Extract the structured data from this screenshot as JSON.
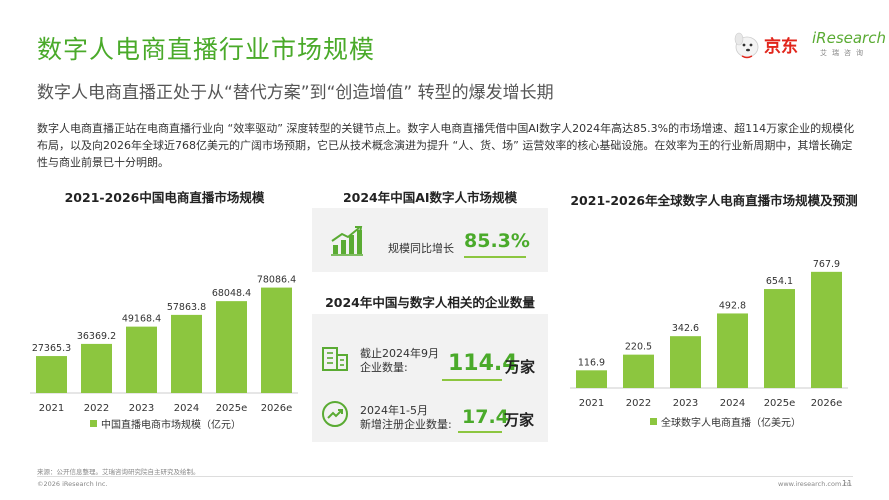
{
  "header": {
    "title": "数字人电商直播行业市场规模",
    "subtitle": "数字人电商直播正处于从“替代方案”到“创造增值” 转型的爆发增长期",
    "paragraph": "数字人电商直播正站在电商直播行业向 “效率驱动” 深度转型的关键节点上。数字人电商直播凭借中国AI数字人2024年高达85.3%的市场增速、超114万家企业的规模化布局，以及向2026年全球近768亿美元的广阔市场预期，它已从技术概念演进为提升 “人、货、场” 运营效率的核心基础设施。在效率为王的行业新周期中，其增长确定性与商业前景已十分明朗。"
  },
  "logo": {
    "jd_text": "京东",
    "iresearch_text": "iResearch",
    "iresearch_sub": "艾瑞咨询"
  },
  "colors": {
    "accent_green": "#4aaa2a",
    "bar_green": "#8cc63f",
    "card_bg": "#f2f2f2"
  },
  "left_section": {
    "title": "2021-2026中国电商直播市场规模"
  },
  "middle_section": {
    "title_top": "2024年中国AI数字人市场规模",
    "growth_label": "规模同比增长",
    "growth_value": "85.3%",
    "growth_icon": "bar-growth-icon",
    "title_bottom": "2024年中国与数字人相关的企业数量",
    "stat1_label_line1": "截止2024年9月",
    "stat1_label_line2": "企业数量:",
    "stat1_value": "114.4",
    "stat1_unit": "万家",
    "stat1_icon": "building-icon",
    "stat2_label_line1": "2024年1-5月",
    "stat2_label_line2": "新增注册企业数量:",
    "stat2_value": "17.4",
    "stat2_unit": "万家",
    "stat2_icon": "trend-up-icon"
  },
  "right_section": {
    "title": "2021-2026年全球数字人电商直播市场规模及预测"
  },
  "chart_data": [
    {
      "type": "bar",
      "categories": [
        "2021",
        "2022",
        "2023",
        "2024",
        "2025e",
        "2026e"
      ],
      "values": [
        27365.3,
        36369.2,
        49168.4,
        57863.8,
        68048.4,
        78086.4
      ],
      "value_labels": [
        "27365.3",
        "36369.2",
        "49168.4",
        "57863.8",
        "68048.4",
        "78086.4"
      ],
      "legend": "中国直播电商市场规模（亿元）",
      "ylim": [
        0,
        80000
      ]
    },
    {
      "type": "bar",
      "categories": [
        "2021",
        "2022",
        "2023",
        "2024",
        "2025e",
        "2026e"
      ],
      "values": [
        116.9,
        220.5,
        342.6,
        492.8,
        654.1,
        767.9
      ],
      "value_labels": [
        "116.9",
        "220.5",
        "342.6",
        "492.8",
        "654.1",
        "767.9"
      ],
      "legend": "全球数字人电商直播（亿美元）",
      "ylim": [
        0,
        780
      ]
    }
  ],
  "footer": {
    "source": "来源：公开信息整理。艾瑞咨询研究院自主研究及绘制。",
    "copyright": "©2026 iResearch Inc.",
    "website": "www.iresearch.com.cn",
    "page": "11"
  }
}
